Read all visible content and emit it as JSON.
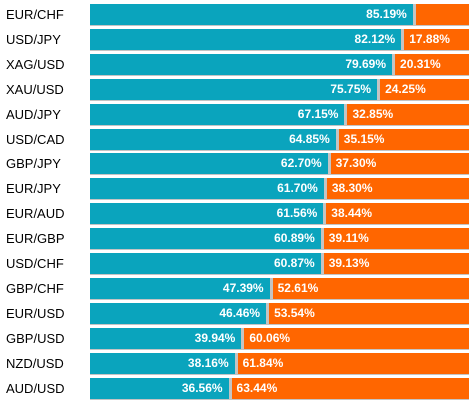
{
  "colors": {
    "long": "#0aa4bd",
    "short": "#ff6600",
    "track": "#c4c4c4"
  },
  "chart_data": {
    "type": "bar",
    "stacked": true,
    "orientation": "horizontal",
    "categories": [
      "EUR/CHF",
      "USD/JPY",
      "XAG/USD",
      "XAU/USD",
      "AUD/JPY",
      "USD/CAD",
      "GBP/JPY",
      "EUR/JPY",
      "EUR/AUD",
      "EUR/GBP",
      "USD/CHF",
      "GBP/CHF",
      "EUR/USD",
      "GBP/USD",
      "NZD/USD",
      "AUD/USD"
    ],
    "series": [
      {
        "values": [
          85.19,
          82.12,
          79.69,
          75.75,
          67.15,
          64.85,
          62.7,
          61.7,
          61.56,
          60.89,
          60.87,
          47.39,
          46.46,
          39.94,
          38.16,
          36.56
        ],
        "labels": [
          "85.19%",
          "82.12%",
          "79.69%",
          "75.75%",
          "67.15%",
          "64.85%",
          "62.70%",
          "61.70%",
          "61.56%",
          "60.89%",
          "60.87%",
          "47.39%",
          "46.46%",
          "39.94%",
          "38.16%",
          "36.56%"
        ]
      },
      {
        "values": [
          14.81,
          17.88,
          20.31,
          24.25,
          32.85,
          35.15,
          37.3,
          38.3,
          38.44,
          39.11,
          39.13,
          52.61,
          53.54,
          60.06,
          61.84,
          63.44
        ],
        "labels": [
          "",
          "17.88%",
          "20.31%",
          "24.25%",
          "32.85%",
          "35.15%",
          "37.30%",
          "38.30%",
          "38.44%",
          "39.11%",
          "39.13%",
          "52.61%",
          "53.54%",
          "60.06%",
          "61.84%",
          "63.44%"
        ]
      }
    ],
    "xlim": [
      0,
      100
    ]
  }
}
